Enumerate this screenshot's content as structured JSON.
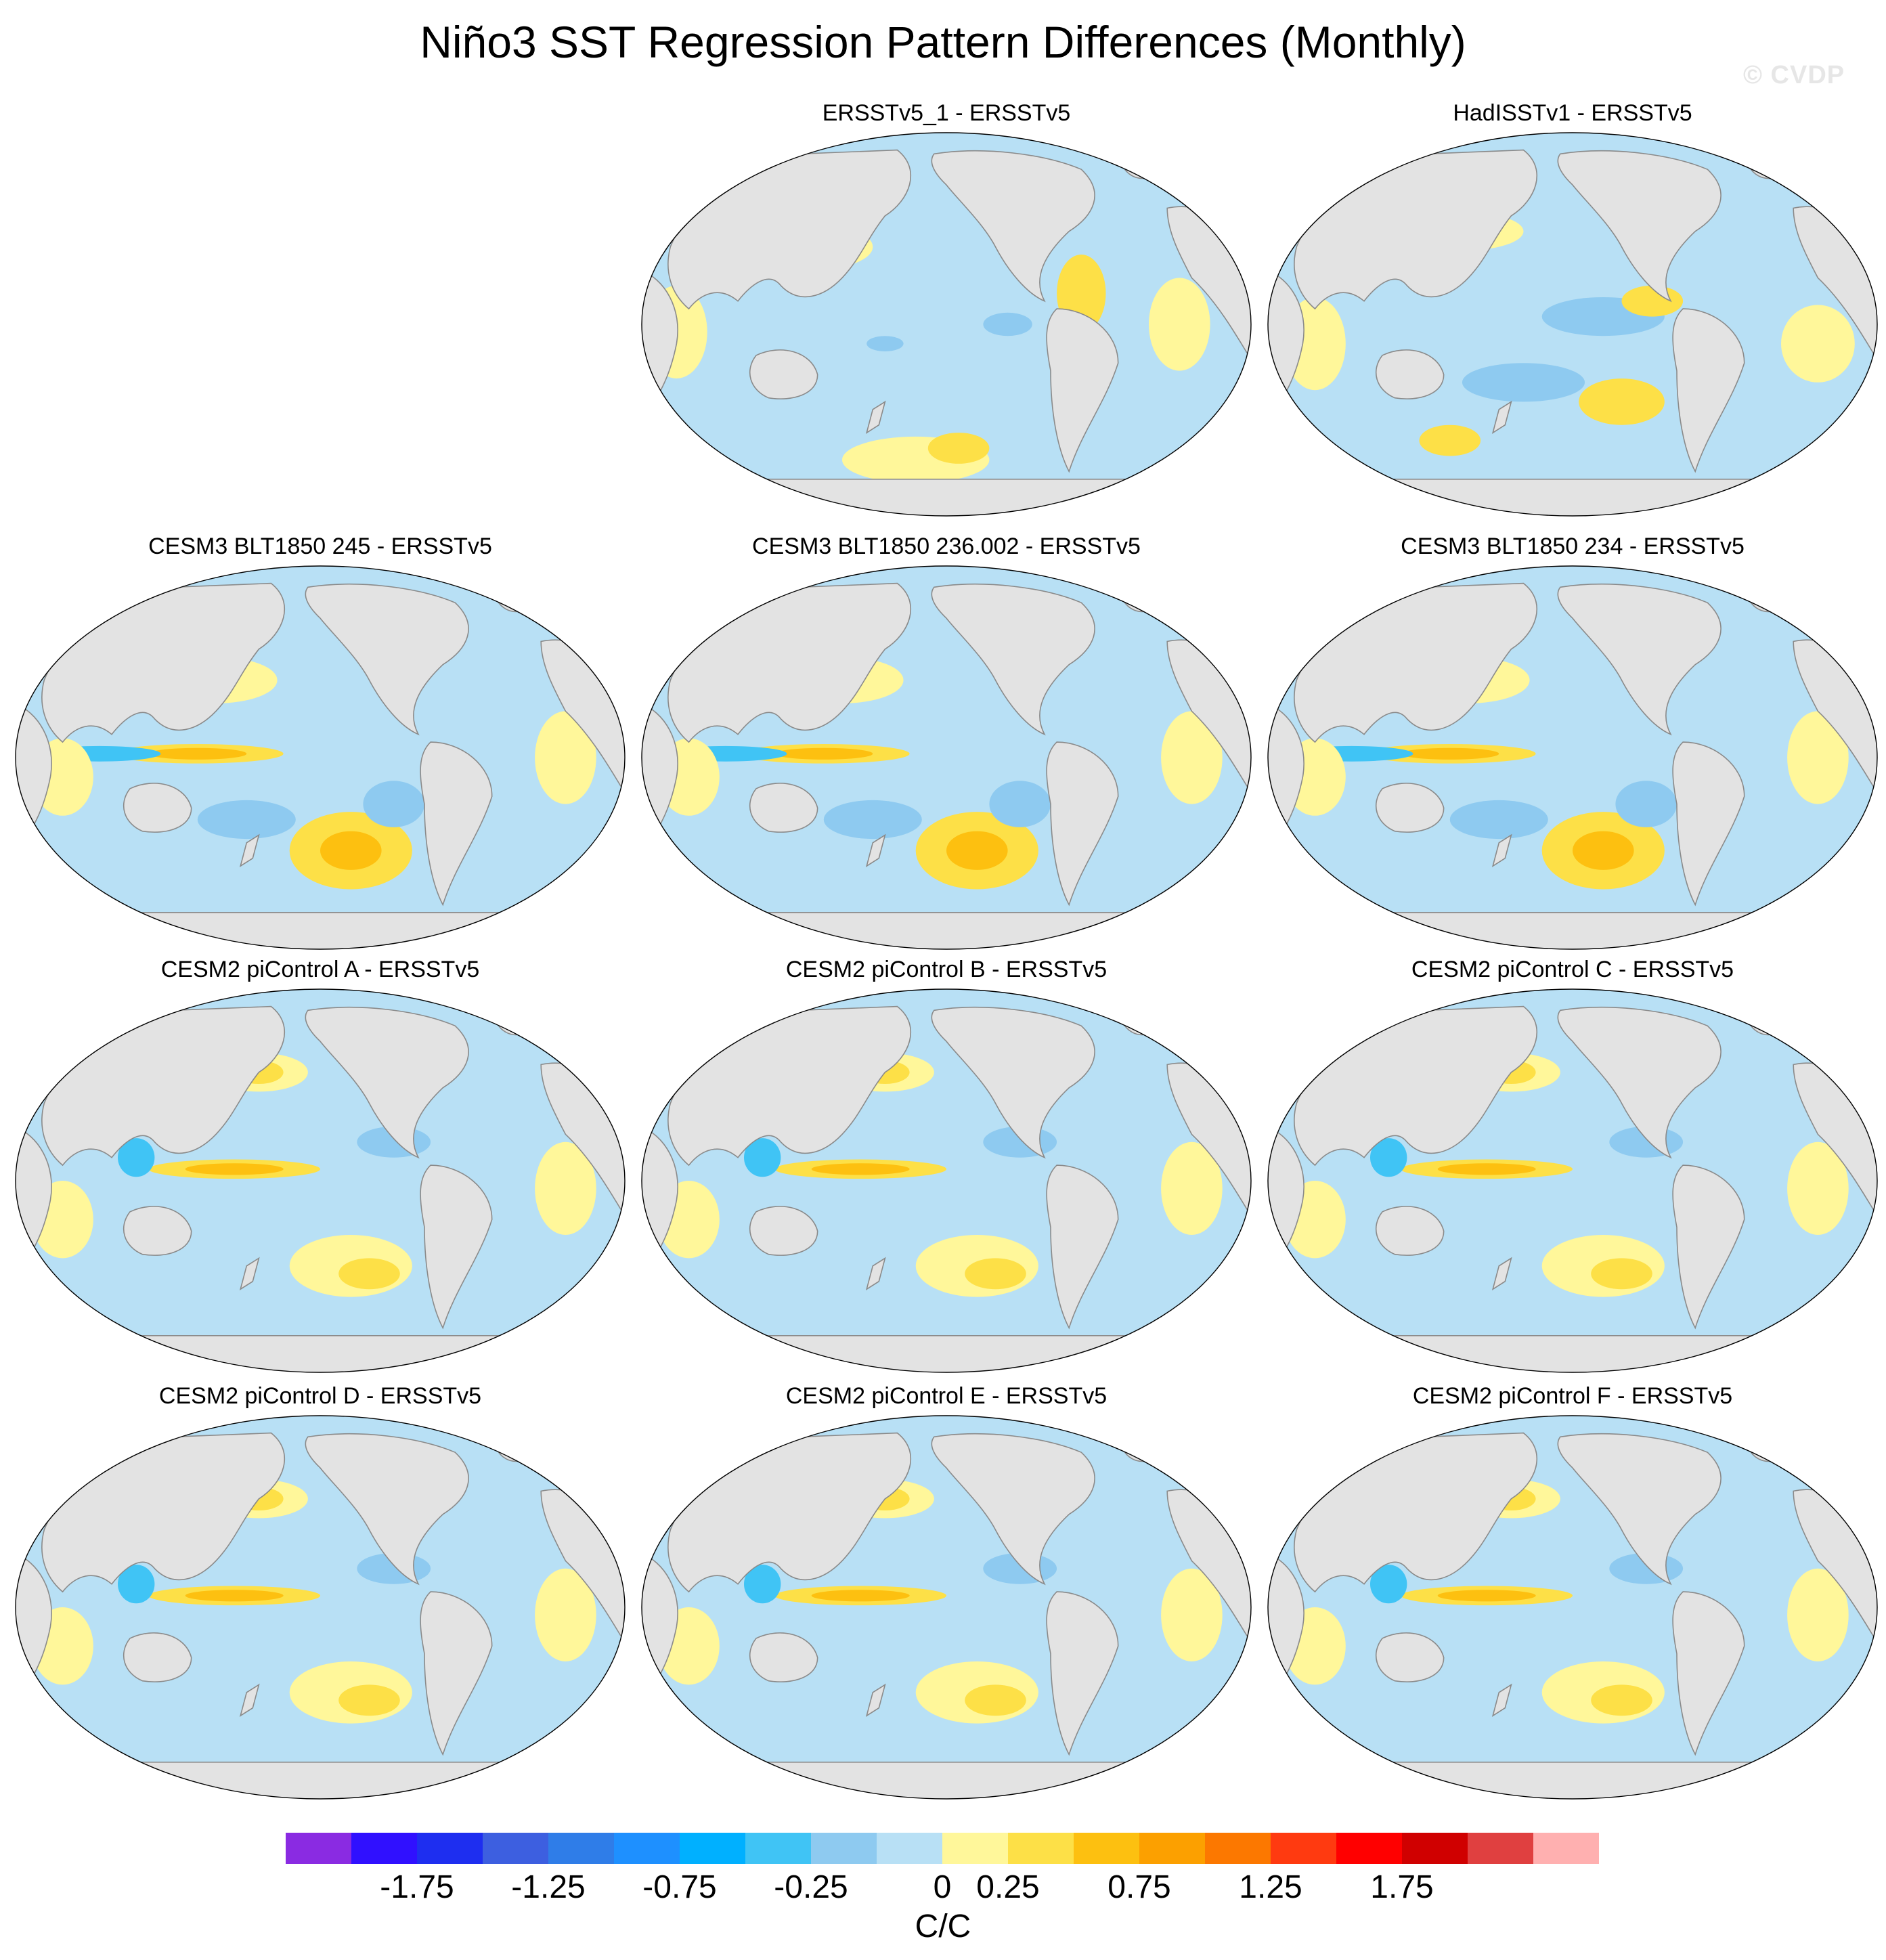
{
  "title": "Niño3 SST Regression Pattern Differences (Monthly)",
  "watermark": "© CVDP",
  "panels": [
    {
      "title": "ERSSTv5_1 - ERSSTv5",
      "pattern": "weak"
    },
    {
      "title": "HadISSTv1 - ERSSTv5",
      "pattern": "mixed"
    },
    {
      "title": "CESM3 BLT1850 245 - ERSSTv5",
      "pattern": "strong"
    },
    {
      "title": "CESM3 BLT1850 236.002 - ERSSTv5",
      "pattern": "strong"
    },
    {
      "title": "CESM3 BLT1850 234 - ERSSTv5",
      "pattern": "strong"
    },
    {
      "title": "CESM2 piControl A - ERSSTv5",
      "pattern": "moderate"
    },
    {
      "title": "CESM2 piControl B - ERSSTv5",
      "pattern": "moderate"
    },
    {
      "title": "CESM2 piControl C - ERSSTv5",
      "pattern": "moderate"
    },
    {
      "title": "CESM2 piControl D - ERSSTv5",
      "pattern": "moderate"
    },
    {
      "title": "CESM2 piControl E - ERSSTv5",
      "pattern": "moderate"
    },
    {
      "title": "CESM2 piControl F - ERSSTv5",
      "pattern": "moderate"
    }
  ],
  "colorbar": {
    "colors": [
      "#8a2be2",
      "#3010ff",
      "#1e2ef0",
      "#3d5fe0",
      "#2f7de8",
      "#1e90ff",
      "#00b0ff",
      "#40c4f5",
      "#8ecaf0",
      "#b8e0f5",
      "#fff79a",
      "#fde047",
      "#fdc010",
      "#fca000",
      "#fc7800",
      "#ff3a10",
      "#ff0000",
      "#d00000",
      "#e04040",
      "#ffb0b0"
    ],
    "tick_labels": [
      "-1.75",
      "-1.25",
      "-0.75",
      "-0.25",
      "0",
      "0.25",
      "0.75",
      "1.25",
      "1.75"
    ],
    "tick_boundary_index": [
      2,
      4,
      6,
      8,
      10,
      11,
      13,
      15,
      17
    ],
    "units": "C/C"
  }
}
